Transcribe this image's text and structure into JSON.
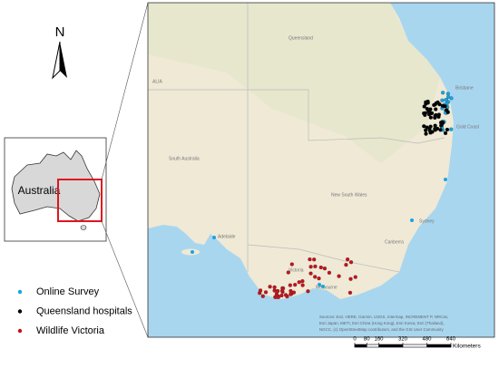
{
  "north": "N",
  "inset": {
    "label": "Australia"
  },
  "map_labels": {
    "queensland": "Queensland",
    "alia": "ALIA",
    "south_australia": "South Australia",
    "new_south_wales": "New South Wales",
    "victoria": "Victoria",
    "brisbane": "Brisbane",
    "gold_coast": "Gold Coast",
    "sydney": "Sydney",
    "canberra": "Canberra",
    "adelaide": "Adelaide",
    "melbourne": "Melbourne"
  },
  "attribution": [
    "Sources: Esri, HERE, Garmin, USGS, Intermap, INCREMENT P, NRCan,",
    "Esri Japan, METI, Esri China (Hong Kong), Esri Korea, Esri (Thailand),",
    "NGCC, (c) OpenStreetMap contributors, and the GIS User Community"
  ],
  "legend": [
    {
      "name": "Online Survey",
      "color": "#1aa3e0"
    },
    {
      "name": "Queensland hospitals",
      "color": "#000000"
    },
    {
      "name": "Wildlife Victoria",
      "color": "#c0141c"
    }
  ],
  "scale_bar": {
    "ticks": [
      0,
      80,
      160,
      320,
      480,
      640
    ],
    "unit": "Kilometers"
  }
}
